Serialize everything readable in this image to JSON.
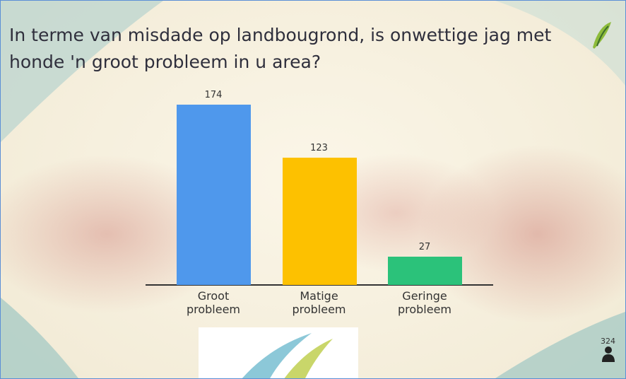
{
  "chart_data": {
    "type": "bar",
    "title": "In terme van misdade op landbougrond, is onwettige jag met honde 'n groot probleem in u area?",
    "categories": [
      "Groot probleem",
      "Matige probleem",
      "Geringe probleem"
    ],
    "values": [
      174,
      123,
      27
    ],
    "colors": [
      "#4f98ec",
      "#fdc100",
      "#2bc27a"
    ],
    "participants": 324
  }
}
